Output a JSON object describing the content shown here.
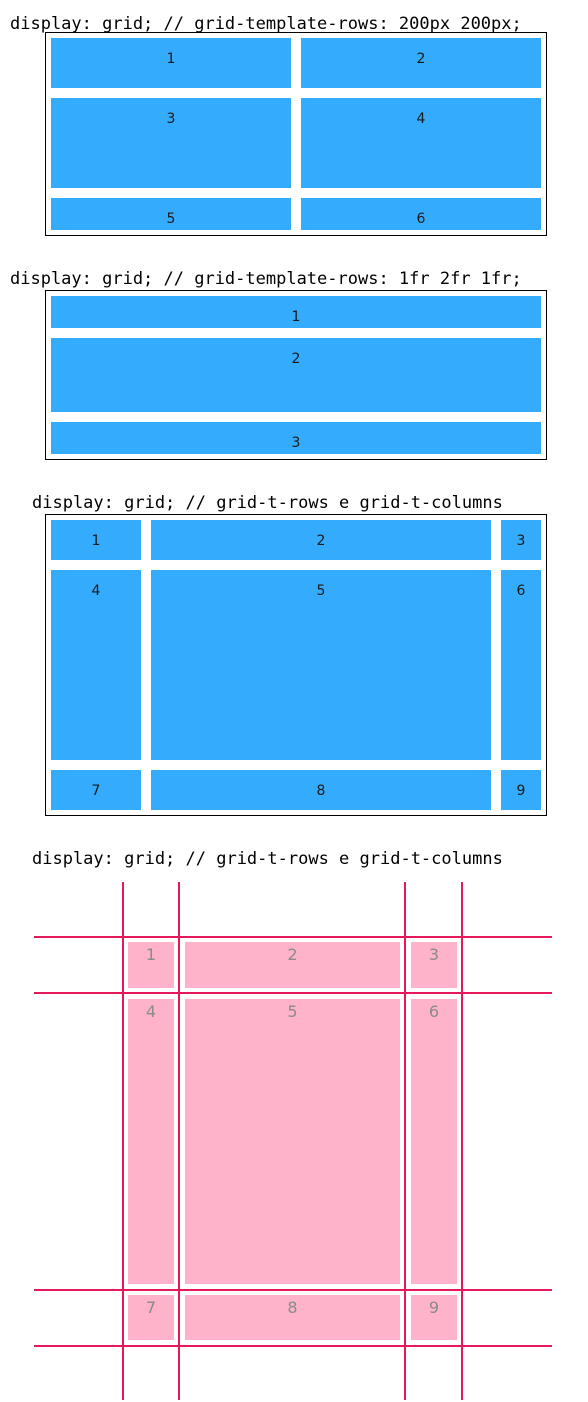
{
  "diagram1": {
    "caption": "display: grid; // grid-template-rows: 200px 200px;",
    "cells": [
      "1",
      "2",
      "3",
      "4",
      "5",
      "6"
    ]
  },
  "diagram2": {
    "caption": "display: grid; // grid-template-rows: 1fr 2fr 1fr;",
    "cells": [
      "1",
      "2",
      "3"
    ]
  },
  "diagram3": {
    "caption": "display: grid; // grid-t-rows e grid-t-columns",
    "cells": [
      "1",
      "2",
      "3",
      "4",
      "5",
      "6",
      "7",
      "8",
      "9"
    ]
  },
  "diagram4": {
    "caption": "display: grid; // grid-t-rows e grid-t-columns",
    "cells": [
      "1",
      "2",
      "3",
      "4",
      "5",
      "6",
      "7",
      "8",
      "9"
    ]
  },
  "colors": {
    "cell_blue": "#35abfd",
    "cell_pink": "#feb3cb",
    "grid_line": "#e5185a"
  }
}
